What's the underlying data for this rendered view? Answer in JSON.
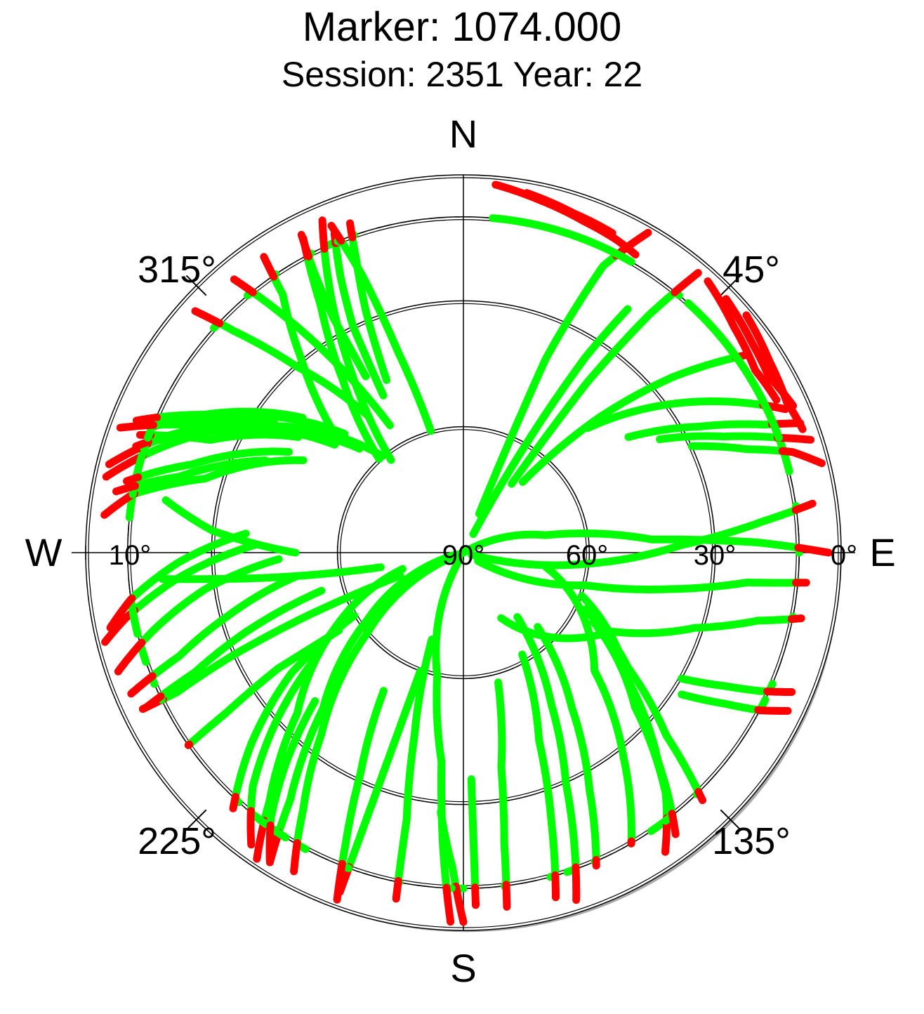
{
  "chart_data": {
    "type": "scatter",
    "projection": "polar-skyplot",
    "title": "Marker: 1074.000",
    "subtitle": "Session: 2351 Year: 22",
    "compass": {
      "north": "N",
      "east": "E",
      "south": "S",
      "west": "W"
    },
    "azimuth_labels": [
      "45°",
      "135°",
      "225°",
      "315°"
    ],
    "elevation_labels": [
      "0°",
      "30°",
      "60°",
      "90°",
      "10°"
    ],
    "elevation_rings_deg": [
      0,
      10,
      30,
      60
    ],
    "elevation_mask_deg": 10,
    "colors": {
      "above_mask": "#00ff00",
      "below_mask": "#ff0000",
      "grid": "#000000",
      "horizon_shade": "#aaaaaa"
    },
    "series": [
      {
        "points": [
          [
            22,
            80
          ],
          [
            23,
            40
          ],
          [
            26,
            14
          ],
          [
            30,
            2
          ]
        ]
      },
      {
        "points": [
          [
            35,
            70
          ],
          [
            36,
            40
          ],
          [
            38,
            18
          ],
          [
            40,
            3
          ]
        ]
      },
      {
        "points": [
          [
            40,
            68
          ],
          [
            45,
            45
          ],
          [
            50,
            25
          ],
          [
            55,
            8
          ]
        ]
      },
      {
        "points": [
          [
            45,
            48
          ],
          [
            55,
            28
          ],
          [
            62,
            14
          ],
          [
            66,
            6
          ]
        ]
      },
      {
        "points": [
          [
            55,
            42
          ],
          [
            62,
            26
          ],
          [
            67,
            12
          ],
          [
            69,
            4
          ]
        ]
      },
      {
        "points": [
          [
            60,
            36
          ],
          [
            66,
            22
          ],
          [
            70,
            10
          ],
          [
            72,
            3
          ]
        ]
      },
      {
        "points": [
          [
            65,
            30
          ],
          [
            70,
            18
          ],
          [
            73,
            8
          ],
          [
            76,
            2
          ]
        ]
      },
      {
        "points": [
          [
            28,
            85
          ],
          [
            30,
            60
          ],
          [
            32,
            35
          ],
          [
            34,
            20
          ]
        ]
      },
      {
        "points": [
          [
            60,
            90
          ],
          [
            78,
            70
          ],
          [
            86,
            45
          ],
          [
            88,
            20
          ],
          [
            90,
            3
          ]
        ]
      },
      {
        "points": [
          [
            105,
            88
          ],
          [
            95,
            60
          ],
          [
            88,
            38
          ],
          [
            84,
            18
          ],
          [
            82,
            6
          ]
        ]
      },
      {
        "points": [
          [
            120,
            86
          ],
          [
            105,
            60
          ],
          [
            100,
            40
          ],
          [
            96,
            22
          ],
          [
            95,
            8
          ]
        ]
      },
      {
        "points": [
          [
            150,
            72
          ],
          [
            118,
            50
          ],
          [
            108,
            32
          ],
          [
            103,
            18
          ],
          [
            101,
            8
          ]
        ]
      },
      {
        "points": [
          [
            120,
            30
          ],
          [
            117,
            20
          ],
          [
            115,
            12
          ],
          [
            113,
            5
          ]
        ]
      },
      {
        "points": [
          [
            123,
            28
          ],
          [
            120,
            18
          ],
          [
            118,
            10
          ],
          [
            116,
            4
          ]
        ]
      },
      {
        "points": [
          [
            118,
            55
          ],
          [
            132,
            35
          ],
          [
            140,
            15
          ],
          [
            146,
            4
          ]
        ]
      },
      {
        "points": [
          [
            110,
            60
          ],
          [
            128,
            40
          ],
          [
            137,
            22
          ],
          [
            143,
            6
          ]
        ]
      },
      {
        "points": [
          [
            115,
            58
          ],
          [
            125,
            42
          ],
          [
            132,
            25
          ],
          [
            136,
            8
          ]
        ]
      },
      {
        "points": [
          [
            100,
            70
          ],
          [
            132,
            48
          ],
          [
            142,
            28
          ],
          [
            150,
            10
          ]
        ]
      },
      {
        "points": [
          [
            135,
            65
          ],
          [
            145,
            45
          ],
          [
            152,
            26
          ],
          [
            157,
            9
          ]
        ]
      },
      {
        "points": [
          [
            140,
            70
          ],
          [
            150,
            48
          ],
          [
            156,
            30
          ],
          [
            160,
            12
          ],
          [
            162,
            3
          ]
        ]
      },
      {
        "points": [
          [
            150,
            62
          ],
          [
            158,
            42
          ],
          [
            162,
            22
          ],
          [
            165,
            5
          ]
        ]
      },
      {
        "points": [
          [
            165,
            58
          ],
          [
            170,
            38
          ],
          [
            172,
            20
          ],
          [
            173,
            5
          ]
        ]
      },
      {
        "points": [
          [
            178,
            36
          ],
          [
            178,
            20
          ],
          [
            178,
            6
          ]
        ]
      },
      {
        "points": [
          [
            185,
            28
          ],
          [
            182,
            15
          ],
          [
            180,
            2
          ]
        ]
      },
      {
        "points": [
          [
            210,
            88
          ],
          [
            192,
            60
          ],
          [
            186,
            40
          ],
          [
            184,
            20
          ],
          [
            182,
            2
          ]
        ]
      },
      {
        "points": [
          [
            200,
            68
          ],
          [
            195,
            45
          ],
          [
            192,
            25
          ],
          [
            191,
            6
          ]
        ]
      },
      {
        "points": [
          [
            200,
            60
          ],
          [
            200,
            40
          ],
          [
            200,
            22
          ],
          [
            200,
            4
          ]
        ]
      },
      {
        "points": [
          [
            210,
            52
          ],
          [
            205,
            32
          ],
          [
            202,
            15
          ],
          [
            200,
            2
          ]
        ]
      },
      {
        "points": [
          [
            250,
            90
          ],
          [
            230,
            60
          ],
          [
            218,
            35
          ],
          [
            212,
            18
          ],
          [
            208,
            4
          ]
        ]
      },
      {
        "points": [
          [
            255,
            88
          ],
          [
            235,
            62
          ],
          [
            222,
            40
          ],
          [
            215,
            18
          ],
          [
            212,
            3
          ]
        ]
      },
      {
        "points": [
          [
            255,
            75
          ],
          [
            240,
            55
          ],
          [
            226,
            35
          ],
          [
            218,
            15
          ],
          [
            214,
            2
          ]
        ]
      },
      {
        "points": [
          [
            240,
            60
          ],
          [
            235,
            40
          ],
          [
            228,
            22
          ],
          [
            222,
            8
          ]
        ]
      },
      {
        "points": [
          [
            235,
            48
          ],
          [
            228,
            30
          ],
          [
            222,
            15
          ],
          [
            216,
            4
          ]
        ]
      },
      {
        "points": [
          [
            225,
            40
          ],
          [
            220,
            24
          ],
          [
            216,
            12
          ],
          [
            212,
            3
          ]
        ]
      },
      {
        "points": [
          [
            250,
            74
          ],
          [
            248,
            50
          ],
          [
            246,
            30
          ],
          [
            244,
            14
          ],
          [
            244,
            5
          ]
        ]
      },
      {
        "points": [
          [
            255,
            55
          ],
          [
            250,
            35
          ],
          [
            246,
            20
          ],
          [
            244,
            6
          ]
        ]
      },
      {
        "points": [
          [
            262,
            50
          ],
          [
            255,
            32
          ],
          [
            250,
            18
          ],
          [
            247,
            4
          ]
        ]
      },
      {
        "points": [
          [
            268,
            46
          ],
          [
            262,
            28
          ],
          [
            256,
            14
          ],
          [
            251,
            3
          ]
        ]
      },
      {
        "points": [
          [
            272,
            40
          ],
          [
            265,
            22
          ],
          [
            259,
            8
          ],
          [
            256,
            2
          ]
        ]
      },
      {
        "points": [
          [
            275,
            38
          ],
          [
            268,
            22
          ],
          [
            262,
            10
          ],
          [
            258,
            4
          ]
        ]
      },
      {
        "points": [
          [
            238,
            55
          ],
          [
            238,
            38
          ],
          [
            236,
            22
          ],
          [
            235,
            10
          ]
        ]
      },
      {
        "points": [
          [
            260,
            70
          ],
          [
            262,
            50
          ],
          [
            264,
            30
          ],
          [
            265,
            18
          ]
        ]
      },
      {
        "points": [
          [
            320,
            60
          ],
          [
            300,
            30
          ],
          [
            290,
            15
          ],
          [
            282,
            3
          ]
        ]
      },
      {
        "points": [
          [
            315,
            55
          ],
          [
            298,
            28
          ],
          [
            290,
            12
          ],
          [
            284,
            3
          ]
        ]
      },
      {
        "points": [
          [
            310,
            50
          ],
          [
            296,
            22
          ],
          [
            288,
            8
          ]
        ]
      },
      {
        "points": [
          [
            315,
            50
          ],
          [
            300,
            25
          ],
          [
            292,
            10
          ]
        ]
      },
      {
        "points": [
          [
            305,
            42
          ],
          [
            294,
            24
          ],
          [
            290,
            8
          ]
        ]
      },
      {
        "points": [
          [
            310,
            40
          ],
          [
            298,
            20
          ],
          [
            292,
            6
          ]
        ]
      },
      {
        "points": [
          [
            300,
            46
          ],
          [
            286,
            26
          ],
          [
            280,
            10
          ],
          [
            276,
            4
          ]
        ]
      },
      {
        "points": [
          [
            300,
            42
          ],
          [
            288,
            22
          ],
          [
            282,
            8
          ]
        ]
      },
      {
        "points": [
          [
            295,
            38
          ],
          [
            285,
            20
          ],
          [
            280,
            6
          ]
        ]
      },
      {
        "points": [
          [
            305,
            35
          ],
          [
            295,
            18
          ],
          [
            290,
            3
          ]
        ]
      },
      {
        "points": [
          [
            325,
            50
          ],
          [
            318,
            30
          ],
          [
            314,
            14
          ],
          [
            312,
            4
          ]
        ]
      },
      {
        "points": [
          [
            330,
            55
          ],
          [
            325,
            30
          ],
          [
            322,
            15
          ],
          [
            320,
            5
          ]
        ]
      },
      {
        "points": [
          [
            318,
            60
          ],
          [
            325,
            40
          ],
          [
            330,
            22
          ],
          [
            333,
            6
          ]
        ]
      },
      {
        "points": [
          [
            322,
            62
          ],
          [
            328,
            40
          ],
          [
            333,
            20
          ],
          [
            337,
            4
          ]
        ]
      },
      {
        "points": [
          [
            312,
            50
          ],
          [
            320,
            30
          ],
          [
            325,
            15
          ],
          [
            326,
            5
          ]
        ]
      },
      {
        "points": [
          [
            333,
            48
          ],
          [
            334,
            30
          ],
          [
            336,
            18
          ],
          [
            338,
            8
          ]
        ]
      },
      {
        "points": [
          [
            336,
            45
          ],
          [
            338,
            28
          ],
          [
            340,
            15
          ],
          [
            341,
            7
          ]
        ]
      },
      {
        "points": [
          [
            331,
            42
          ],
          [
            331,
            26
          ],
          [
            332,
            14
          ],
          [
            333,
            5
          ]
        ]
      },
      {
        "points": [
          [
            345,
            60
          ],
          [
            342,
            40
          ],
          [
            340,
            20
          ],
          [
            338,
            6
          ]
        ]
      },
      {
        "points": [
          [
            270,
            50
          ],
          [
            275,
            30
          ],
          [
            280,
            18
          ]
        ]
      },
      {
        "points": [
          [
            5,
            2
          ],
          [
            12,
            4
          ],
          [
            20,
            6
          ],
          [
            26,
            7
          ],
          [
            30,
            8
          ]
        ]
      },
      {
        "points": [
          [
            10,
            3
          ],
          [
            18,
            5
          ],
          [
            25,
            6
          ]
        ]
      },
      {
        "points": [
          [
            42,
            3
          ],
          [
            50,
            6
          ],
          [
            58,
            8
          ],
          [
            64,
            7
          ]
        ]
      },
      {
        "points": [
          [
            46,
            3
          ],
          [
            54,
            5
          ],
          [
            60,
            6
          ],
          [
            66,
            4
          ]
        ]
      },
      {
        "points": [
          [
            50,
            2
          ],
          [
            58,
            4
          ],
          [
            65,
            5
          ],
          [
            70,
            4
          ]
        ]
      }
    ]
  }
}
